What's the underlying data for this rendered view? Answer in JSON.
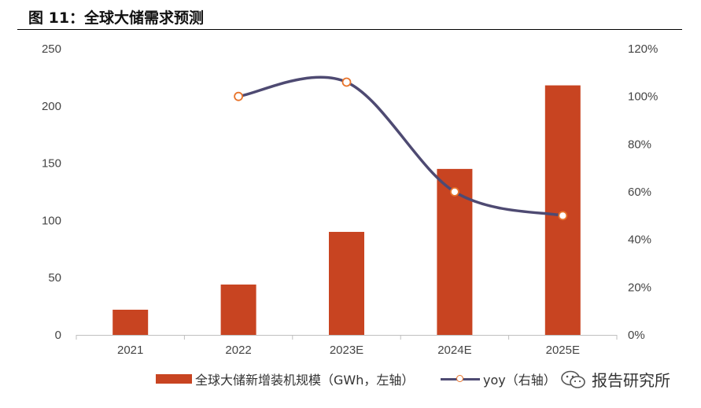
{
  "figure": {
    "title": "图 11：全球大储需求预测"
  },
  "watermark": {
    "text": "报告研究所"
  },
  "colors": {
    "bar": "#c84421",
    "line": "#4e4a72",
    "marker": "#e8732a"
  },
  "chart_data": {
    "type": "bar",
    "categories": [
      "2021",
      "2022",
      "2023E",
      "2024E",
      "2025E"
    ],
    "series": [
      {
        "name": "全球大储新增装机规模（GWh，左轴）",
        "type": "bar",
        "axis": "left",
        "values": [
          22,
          44,
          90,
          145,
          218
        ]
      },
      {
        "name": "yoy（右轴）",
        "type": "line",
        "axis": "right",
        "smooth": true,
        "values": [
          null,
          100,
          106,
          60,
          50
        ]
      }
    ],
    "y_left": {
      "ticks": [
        "0",
        "50",
        "100",
        "150",
        "200",
        "250"
      ],
      "ylim": [
        0,
        250
      ]
    },
    "y_right": {
      "ticks": [
        "0%",
        "20%",
        "40%",
        "60%",
        "80%",
        "100%",
        "120%"
      ],
      "ylim": [
        0,
        120
      ]
    },
    "legend": {
      "position": "bottom"
    },
    "grid": false
  }
}
